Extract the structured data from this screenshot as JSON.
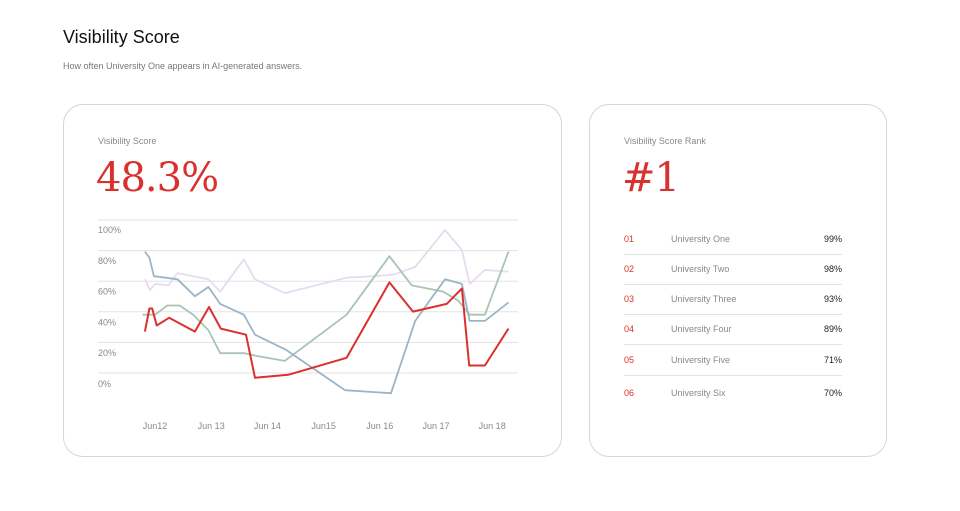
{
  "header": {
    "title": "Visibility Score",
    "subtitle": "How often University One appears in AI-generated answers."
  },
  "score_card": {
    "label": "Visibility Score",
    "value": "48.3%"
  },
  "rank_card": {
    "label": "Visibility Score Rank",
    "value": "#1",
    "rows": [
      {
        "rank": "01",
        "name": "University One",
        "pct": "99%"
      },
      {
        "rank": "02",
        "name": "University Two",
        "pct": "98%"
      },
      {
        "rank": "03",
        "name": "University Three",
        "pct": "93%"
      },
      {
        "rank": "04",
        "name": "University Four",
        "pct": "89%"
      },
      {
        "rank": "05",
        "name": "University Five",
        "pct": "71%"
      },
      {
        "rank": "06",
        "name": "University Six",
        "pct": "70%"
      }
    ]
  },
  "chart_data": {
    "type": "line",
    "x_unit": "day of June",
    "x_ticks": [
      {
        "x": 12,
        "label": "Jun12"
      },
      {
        "x": 13,
        "label": "Jun 13"
      },
      {
        "x": 14,
        "label": "Jun 14"
      },
      {
        "x": 15,
        "label": "Jun15"
      },
      {
        "x": 16,
        "label": "Jun 16"
      },
      {
        "x": 17,
        "label": "Jun 17"
      },
      {
        "x": 18,
        "label": "Jun 18"
      }
    ],
    "y_ticks": [
      {
        "v": 100,
        "label": "100%"
      },
      {
        "v": 80,
        "label": "80%"
      },
      {
        "v": 60,
        "label": "60%"
      },
      {
        "v": 40,
        "label": "40%"
      },
      {
        "v": 20,
        "label": "20%"
      },
      {
        "v": 0,
        "label": "0%"
      }
    ],
    "ylim": [
      -10,
      100
    ],
    "xlim": [
      11.6,
      18.6
    ],
    "grid": true,
    "series": [
      {
        "color": "#e7dbef",
        "x": [
          11.82,
          11.91,
          12.0,
          12.24,
          12.4,
          12.95,
          13.16,
          13.58,
          13.78,
          14.31,
          15.41,
          15.88,
          16.24,
          16.63,
          17.16,
          17.46,
          17.6,
          17.87,
          18.29
        ],
        "y": [
          68,
          61,
          65,
          64,
          72,
          68,
          60,
          81,
          68,
          59,
          69,
          70,
          71,
          76,
          100,
          87,
          65,
          74,
          73
        ]
      },
      {
        "color": "#a9c4b5",
        "x": [
          11.78,
          12.0,
          12.22,
          12.44,
          12.68,
          12.95,
          13.16,
          13.6,
          13.84,
          14.31,
          15.41,
          16.17,
          16.57,
          17.13,
          17.4,
          17.6,
          17.87,
          18.29
        ],
        "y": [
          45,
          45,
          51,
          51,
          45,
          35,
          20,
          20,
          18,
          15,
          45,
          83,
          64,
          60,
          54,
          45,
          45,
          86
        ]
      },
      {
        "color": "#9db4c7",
        "x": [
          11.82,
          11.9,
          11.98,
          12.4,
          12.71,
          12.95,
          13.16,
          13.58,
          13.78,
          14.34,
          15.38,
          16.2,
          16.63,
          17.16,
          17.46,
          17.6,
          17.87,
          18.29
        ],
        "y": [
          86,
          82,
          70,
          68,
          57,
          63,
          52,
          45,
          32,
          22,
          -4,
          -6,
          41,
          68,
          65,
          41,
          41,
          53
        ]
      },
      {
        "color": "#d9322e",
        "x": [
          11.82,
          11.9,
          11.95,
          12.03,
          12.25,
          12.71,
          12.96,
          13.17,
          13.62,
          13.78,
          14.37,
          15.41,
          16.17,
          16.59,
          17.19,
          17.46,
          17.59,
          17.87,
          18.29
        ],
        "y": [
          34,
          49,
          49,
          38,
          43,
          34,
          50,
          36,
          32,
          4,
          6,
          17,
          66,
          47,
          52,
          62,
          12,
          12,
          36
        ]
      }
    ]
  }
}
